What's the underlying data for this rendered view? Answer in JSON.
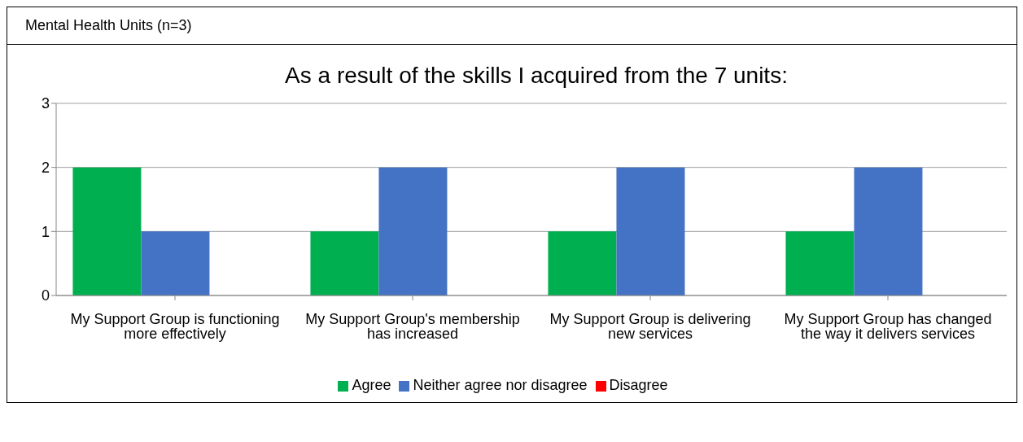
{
  "chart_data": {
    "type": "bar",
    "title": "As a result of the skills I acquired from the 7 units:",
    "annotations": [
      "Mental Health Units (n=3)"
    ],
    "categories": [
      "My Support Group is functioning more effectively",
      "My Support Group's membership has increased",
      "My Support Group is delivering new services",
      "My Support Group has changed the way it delivers services"
    ],
    "series": [
      {
        "name": "Agree",
        "color": "#00b050",
        "values": [
          2,
          1,
          1,
          1
        ]
      },
      {
        "name": "Neither agree nor disagree",
        "color": "#4472c4",
        "values": [
          1,
          2,
          2,
          2
        ]
      },
      {
        "name": "Disagree",
        "color": "#ff0000",
        "values": [
          0,
          0,
          0,
          0
        ]
      }
    ],
    "ylim": [
      0,
      3
    ],
    "yticks": [
      0,
      1,
      2,
      3
    ],
    "grid": "y",
    "legend": "bottom"
  }
}
